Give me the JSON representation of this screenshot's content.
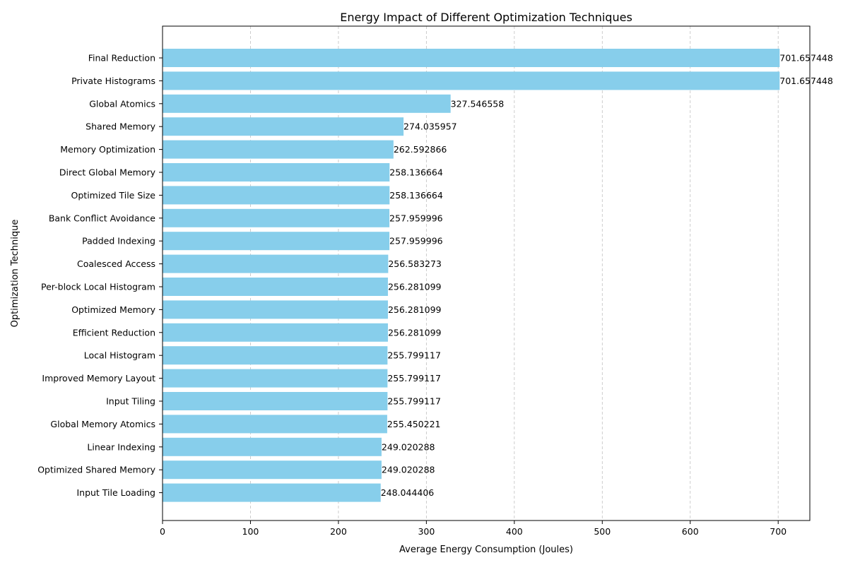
{
  "chart_data": {
    "type": "bar",
    "orientation": "horizontal",
    "title": "Energy Impact of Different Optimization Techniques",
    "xlabel": "Average Energy Consumption (Joules)",
    "ylabel": "Optimization Technique",
    "xlim": [
      0,
      736
    ],
    "xticks": [
      0,
      100,
      200,
      300,
      400,
      500,
      600,
      700
    ],
    "grid": "x-dashed",
    "bar_color": "#87CEEB",
    "categories": [
      "Final Reduction",
      "Private Histograms",
      "Global Atomics",
      "Shared Memory",
      "Memory Optimization",
      "Direct Global Memory",
      "Optimized Tile Size",
      "Bank Conflict Avoidance",
      "Padded Indexing",
      "Coalesced Access",
      "Per-block Local Histogram",
      "Optimized Memory",
      "Efficient Reduction",
      "Local Histogram",
      "Improved Memory Layout",
      "Input Tiling",
      "Global Memory Atomics",
      "Linear Indexing",
      "Optimized Shared Memory",
      "Input Tile Loading"
    ],
    "values": [
      701.657448,
      701.657448,
      327.546558,
      274.035957,
      262.592866,
      258.136664,
      258.136664,
      257.959996,
      257.959996,
      256.583273,
      256.281099,
      256.281099,
      256.281099,
      255.799117,
      255.799117,
      255.799117,
      255.450221,
      249.020288,
      249.020288,
      248.044406
    ],
    "value_labels": [
      "701.657448",
      "701.657448",
      "327.546558",
      "274.035957",
      "262.592866",
      "258.136664",
      "258.136664",
      "257.959996",
      "257.959996",
      "256.583273",
      "256.281099",
      "256.281099",
      "256.281099",
      "255.799117",
      "255.799117",
      "255.799117",
      "255.450221",
      "249.020288",
      "249.020288",
      "248.044406"
    ]
  }
}
